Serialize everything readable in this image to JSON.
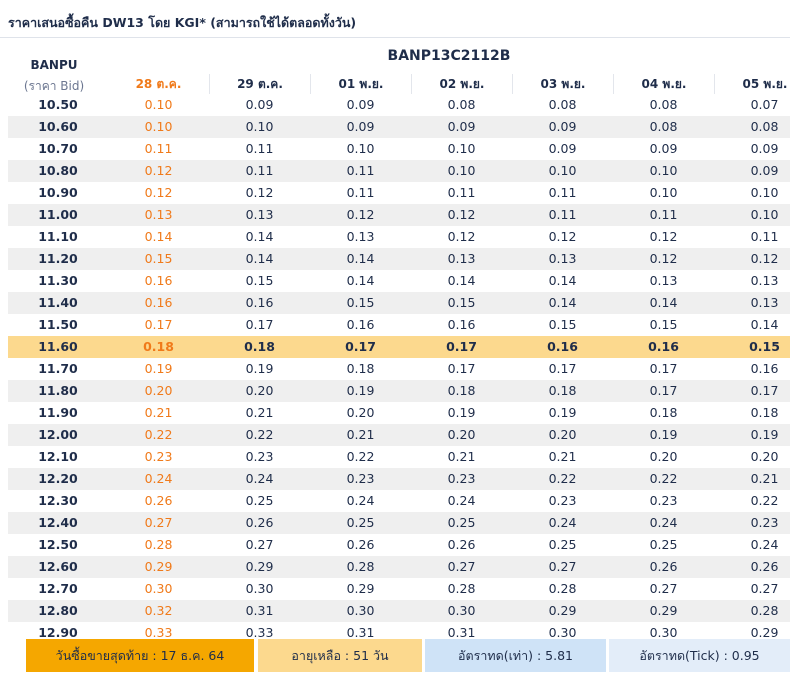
{
  "title": "ราคาเสนอซื้อคืน DW13 โดย KGI* (สามารถใช้ได้ตลอดทั้งวัน)",
  "stock": {
    "name": "BANPU",
    "sub": "(ราคา Bid)"
  },
  "warrant": "BANP13C2112B",
  "dates": [
    "28 ต.ค.",
    "29 ต.ค.",
    "01 พ.ย.",
    "02 พ.ย.",
    "03 พ.ย.",
    "04 พ.ย.",
    "05 พ.ย."
  ],
  "highlight_row": "11.60",
  "colors": {
    "accent_orange": "#f07a1a",
    "highlight": "#fcd98e",
    "footer_orange": "#f5a700",
    "footer_blue": "#cfe3f7"
  },
  "rows": [
    {
      "bp": "10.50",
      "vals": [
        "0.10",
        "0.09",
        "0.09",
        "0.08",
        "0.08",
        "0.08",
        "0.07"
      ]
    },
    {
      "bp": "10.60",
      "vals": [
        "0.10",
        "0.10",
        "0.09",
        "0.09",
        "0.09",
        "0.08",
        "0.08"
      ]
    },
    {
      "bp": "10.70",
      "vals": [
        "0.11",
        "0.11",
        "0.10",
        "0.10",
        "0.09",
        "0.09",
        "0.09"
      ]
    },
    {
      "bp": "10.80",
      "vals": [
        "0.12",
        "0.11",
        "0.11",
        "0.10",
        "0.10",
        "0.10",
        "0.09"
      ]
    },
    {
      "bp": "10.90",
      "vals": [
        "0.12",
        "0.12",
        "0.11",
        "0.11",
        "0.11",
        "0.10",
        "0.10"
      ]
    },
    {
      "bp": "11.00",
      "vals": [
        "0.13",
        "0.13",
        "0.12",
        "0.12",
        "0.11",
        "0.11",
        "0.10"
      ]
    },
    {
      "bp": "11.10",
      "vals": [
        "0.14",
        "0.14",
        "0.13",
        "0.12",
        "0.12",
        "0.12",
        "0.11"
      ]
    },
    {
      "bp": "11.20",
      "vals": [
        "0.15",
        "0.14",
        "0.14",
        "0.13",
        "0.13",
        "0.12",
        "0.12"
      ]
    },
    {
      "bp": "11.30",
      "vals": [
        "0.16",
        "0.15",
        "0.14",
        "0.14",
        "0.14",
        "0.13",
        "0.13"
      ]
    },
    {
      "bp": "11.40",
      "vals": [
        "0.16",
        "0.16",
        "0.15",
        "0.15",
        "0.14",
        "0.14",
        "0.13"
      ]
    },
    {
      "bp": "11.50",
      "vals": [
        "0.17",
        "0.17",
        "0.16",
        "0.16",
        "0.15",
        "0.15",
        "0.14"
      ]
    },
    {
      "bp": "11.60",
      "vals": [
        "0.18",
        "0.18",
        "0.17",
        "0.17",
        "0.16",
        "0.16",
        "0.15"
      ]
    },
    {
      "bp": "11.70",
      "vals": [
        "0.19",
        "0.19",
        "0.18",
        "0.17",
        "0.17",
        "0.17",
        "0.16"
      ]
    },
    {
      "bp": "11.80",
      "vals": [
        "0.20",
        "0.20",
        "0.19",
        "0.18",
        "0.18",
        "0.17",
        "0.17"
      ]
    },
    {
      "bp": "11.90",
      "vals": [
        "0.21",
        "0.21",
        "0.20",
        "0.19",
        "0.19",
        "0.18",
        "0.18"
      ]
    },
    {
      "bp": "12.00",
      "vals": [
        "0.22",
        "0.22",
        "0.21",
        "0.20",
        "0.20",
        "0.19",
        "0.19"
      ]
    },
    {
      "bp": "12.10",
      "vals": [
        "0.23",
        "0.23",
        "0.22",
        "0.21",
        "0.21",
        "0.20",
        "0.20"
      ]
    },
    {
      "bp": "12.20",
      "vals": [
        "0.24",
        "0.24",
        "0.23",
        "0.23",
        "0.22",
        "0.22",
        "0.21"
      ]
    },
    {
      "bp": "12.30",
      "vals": [
        "0.26",
        "0.25",
        "0.24",
        "0.24",
        "0.23",
        "0.23",
        "0.22"
      ]
    },
    {
      "bp": "12.40",
      "vals": [
        "0.27",
        "0.26",
        "0.25",
        "0.25",
        "0.24",
        "0.24",
        "0.23"
      ]
    },
    {
      "bp": "12.50",
      "vals": [
        "0.28",
        "0.27",
        "0.26",
        "0.26",
        "0.25",
        "0.25",
        "0.24"
      ]
    },
    {
      "bp": "12.60",
      "vals": [
        "0.29",
        "0.29",
        "0.28",
        "0.27",
        "0.27",
        "0.26",
        "0.26"
      ]
    },
    {
      "bp": "12.70",
      "vals": [
        "0.30",
        "0.30",
        "0.29",
        "0.28",
        "0.28",
        "0.27",
        "0.27"
      ]
    },
    {
      "bp": "12.80",
      "vals": [
        "0.32",
        "0.31",
        "0.30",
        "0.30",
        "0.29",
        "0.29",
        "0.28"
      ]
    },
    {
      "bp": "12.90",
      "vals": [
        "0.33",
        "0.33",
        "0.31",
        "0.31",
        "0.30",
        "0.30",
        "0.29"
      ]
    }
  ],
  "footer": {
    "last_trade": "วันซื้อขายสุดท้าย : 17 ธ.ค. 64",
    "days_left": "อายุเหลือ : 51 วัน",
    "ratio": "อัตราทด(เท่า) : 5.81",
    "ratio_tick": "อัตราทด(Tick) : 0.95"
  }
}
